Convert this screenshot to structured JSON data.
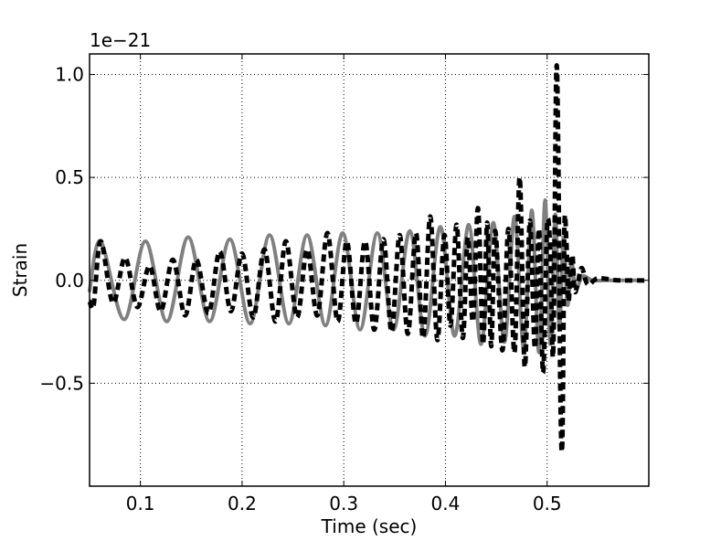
{
  "chart_data": {
    "type": "line",
    "title": "",
    "xlabel": "Time (sec)",
    "ylabel": "Strain",
    "y_offset_label": "1e−21",
    "xlim": [
      0.05,
      0.6
    ],
    "ylim": [
      -1.0,
      1.1
    ],
    "grid": true,
    "xticks": [
      {
        "value": 0.1,
        "label": "0.1"
      },
      {
        "value": 0.2,
        "label": "0.2"
      },
      {
        "value": 0.3,
        "label": "0.3"
      },
      {
        "value": 0.4,
        "label": "0.4"
      },
      {
        "value": 0.5,
        "label": "0.5"
      }
    ],
    "yticks": [
      {
        "value": -0.5,
        "label": "−0.5"
      },
      {
        "value": 0.0,
        "label": "0.0"
      },
      {
        "value": 0.5,
        "label": "0.5"
      },
      {
        "value": 1.0,
        "label": "1.0"
      }
    ],
    "series": [
      {
        "style": "solid",
        "color": "#808080",
        "x": [
          0.05,
          0.061,
          0.084,
          0.105,
          0.126,
          0.147,
          0.168,
          0.188,
          0.208,
          0.227,
          0.246,
          0.264,
          0.282,
          0.299,
          0.316,
          0.333,
          0.349,
          0.365,
          0.38,
          0.395,
          0.409,
          0.423,
          0.435,
          0.447,
          0.458,
          0.468,
          0.477,
          0.485,
          0.492,
          0.498,
          0.503,
          0.508,
          0.512,
          0.516,
          0.52,
          0.524,
          0.528,
          0.535,
          0.545,
          0.56,
          0.59
        ],
        "y": [
          -0.05,
          0.19,
          -0.19,
          0.19,
          -0.2,
          0.21,
          -0.2,
          0.2,
          -0.21,
          0.22,
          -0.21,
          0.22,
          -0.22,
          0.23,
          -0.24,
          0.23,
          -0.24,
          0.24,
          -0.27,
          0.26,
          -0.27,
          0.27,
          -0.31,
          0.28,
          -0.3,
          0.31,
          -0.33,
          0.34,
          -0.35,
          0.39,
          -0.31,
          0.32,
          -0.24,
          0.21,
          -0.12,
          0.09,
          -0.04,
          0.02,
          0.0,
          0.0,
          0.0
        ]
      },
      {
        "style": "dashed",
        "color": "#000000",
        "x": [
          0.05,
          0.054,
          0.061,
          0.073,
          0.085,
          0.097,
          0.109,
          0.12,
          0.132,
          0.144,
          0.155,
          0.167,
          0.178,
          0.189,
          0.2,
          0.211,
          0.222,
          0.233,
          0.243,
          0.254,
          0.264,
          0.274,
          0.284,
          0.294,
          0.303,
          0.312,
          0.321,
          0.33,
          0.339,
          0.347,
          0.355,
          0.363,
          0.371,
          0.378,
          0.385,
          0.392,
          0.399,
          0.405,
          0.411,
          0.417,
          0.422,
          0.427,
          0.432,
          0.437,
          0.441,
          0.445,
          0.449,
          0.456,
          0.462,
          0.468,
          0.473,
          0.478,
          0.483,
          0.488,
          0.492,
          0.496,
          0.5,
          0.503,
          0.506,
          0.509,
          0.511,
          0.513,
          0.515,
          0.517,
          0.519,
          0.521,
          0.523,
          0.525,
          0.527,
          0.53,
          0.534,
          0.54,
          0.55,
          0.57,
          0.6
        ],
        "y": [
          -0.1,
          -0.12,
          0.19,
          -0.11,
          0.11,
          -0.13,
          0.07,
          -0.15,
          0.1,
          -0.17,
          0.1,
          -0.16,
          0.14,
          -0.15,
          0.13,
          -0.18,
          0.15,
          -0.2,
          0.19,
          -0.18,
          0.15,
          -0.17,
          0.23,
          -0.2,
          0.19,
          -0.21,
          0.19,
          -0.24,
          0.2,
          -0.25,
          0.22,
          -0.26,
          0.23,
          -0.28,
          0.31,
          -0.29,
          0.22,
          -0.22,
          0.27,
          -0.28,
          0.21,
          -0.2,
          0.35,
          -0.31,
          0.28,
          -0.32,
          0.24,
          -0.34,
          0.25,
          -0.35,
          0.5,
          -0.42,
          0.29,
          -0.33,
          0.25,
          -0.45,
          0.26,
          0.15,
          -0.35,
          1.0,
          0.6,
          -0.55,
          -0.78,
          0.25,
          0.18,
          -0.1,
          0.05,
          0.12,
          -0.05,
          -0.02,
          0.06,
          -0.02,
          0.01,
          0.0,
          0.0
        ]
      }
    ]
  }
}
